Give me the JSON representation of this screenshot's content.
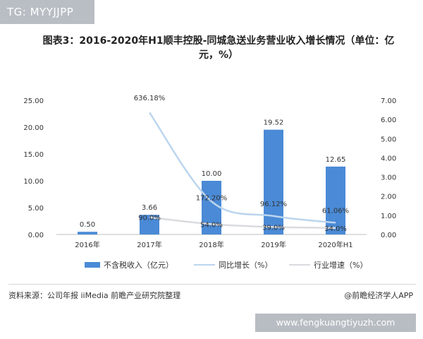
{
  "watermark_tag": "TG: MYYJJPP",
  "title": {
    "line1": "图表3：2016-2020年H1顺丰控股-同城急送业务营业收入增长情况（单位：亿",
    "line2": "元，%）"
  },
  "chart_data": {
    "type": "bar",
    "categories": [
      "2016年",
      "2017年",
      "2018年",
      "2019年",
      "2020年H1"
    ],
    "series": [
      {
        "name": "不含税收入（亿元）",
        "type": "bar",
        "axis": "left",
        "color": "#4a8ad6",
        "values": [
          0.5,
          3.66,
          10.0,
          19.52,
          12.65
        ],
        "labels": [
          "0.50",
          "3.66",
          "10.00",
          "19.52",
          "12.65"
        ]
      },
      {
        "name": "同比增长（%）",
        "type": "line",
        "axis": "right",
        "color": "#bcd5ee",
        "values": [
          null,
          636.18,
          172.2,
          96.12,
          61.06
        ],
        "labels": [
          "",
          "636.18%",
          "172.20%",
          "96.12%",
          "61.06%"
        ]
      },
      {
        "name": "行业增速（%）",
        "type": "line",
        "axis": "right",
        "color": "#d9dbde",
        "values": [
          null,
          90.0,
          54.0,
          39.0,
          34.0
        ],
        "labels": [
          "",
          "90.0%",
          "54.0%",
          "39.0%",
          "34.0%"
        ]
      }
    ],
    "left_axis": {
      "ylim": [
        0,
        25
      ],
      "ticks": [
        "0.00",
        "5.00",
        "10.00",
        "15.00",
        "20.00",
        "25.00"
      ]
    },
    "right_axis": {
      "ylim": [
        0,
        7
      ],
      "ticks": [
        "0.00",
        "1.00",
        "2.00",
        "3.00",
        "4.00",
        "5.00",
        "6.00",
        "7.00"
      ]
    },
    "legend_position": "bottom",
    "grid": false
  },
  "source": "资料来源：公司年报 iiMedia 前瞻产业研究院整理",
  "credit": "@前瞻经济学人APP",
  "url_banner": "www.fengkuangtiyuzh.com"
}
